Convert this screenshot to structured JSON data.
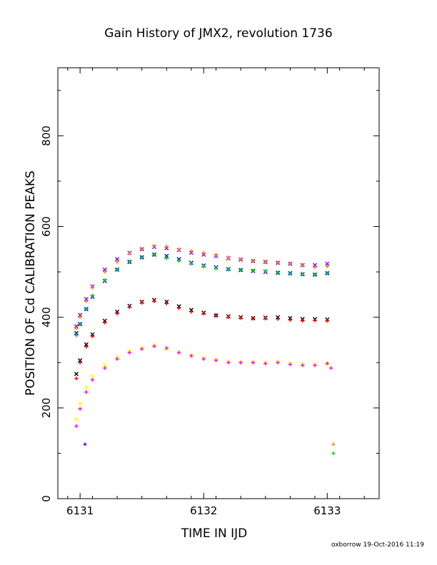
{
  "title": "Gain History of JMX2, revolution 1736",
  "footer": "oxborrow 19-Oct-2016 11:19",
  "chart_data": {
    "type": "scatter",
    "title": "Gain History of JMX2, revolution 1736",
    "xlabel": "TIME IN IJD",
    "ylabel": "POSITION OF Cd CALIBRATION PEAKS",
    "xlim": [
      6130.82,
      6133.42
    ],
    "ylim": [
      0,
      950
    ],
    "xticks": [
      "6131",
      "6132",
      "6133"
    ],
    "yticks": [
      "0",
      "200",
      "400",
      "600",
      "800"
    ],
    "grid": false,
    "legend": "none",
    "series": [
      {
        "color": "#8800ff",
        "marker": "x",
        "x": [
          6130.97,
          6131.0,
          6131.05,
          6131.1,
          6131.2,
          6131.3,
          6131.4,
          6131.5,
          6131.6,
          6131.7,
          6131.8,
          6131.9,
          6132.0,
          6132.1,
          6132.2,
          6132.3,
          6132.4,
          6132.5,
          6132.6,
          6132.7,
          6132.8,
          6132.9,
          6133.0
        ],
        "y": [
          380,
          405,
          440,
          468,
          505,
          528,
          542,
          550,
          555,
          552,
          548,
          542,
          538,
          535,
          530,
          527,
          524,
          522,
          520,
          518,
          515,
          515,
          518
        ]
      },
      {
        "color": "#0000ff",
        "marker": "x",
        "x": [
          6130.97,
          6131.0,
          6131.05,
          6131.1,
          6131.2,
          6131.3,
          6131.4,
          6131.5,
          6131.6,
          6131.7,
          6131.8,
          6131.9,
          6132.0,
          6132.1,
          6132.2,
          6132.3,
          6132.4,
          6132.5,
          6132.6,
          6132.7,
          6132.8,
          6132.9,
          6133.0
        ],
        "y": [
          365,
          385,
          418,
          445,
          480,
          505,
          522,
          532,
          538,
          535,
          528,
          520,
          514,
          510,
          506,
          504,
          502,
          500,
          498,
          497,
          495,
          494,
          497
        ]
      },
      {
        "color": "#ff8800",
        "marker": "+",
        "x": [
          6130.97,
          6131.0,
          6131.05,
          6131.1,
          6131.2,
          6131.3,
          6131.4,
          6131.5,
          6131.6,
          6131.7,
          6131.8,
          6131.9,
          6132.0,
          6132.1,
          6132.2,
          6132.3,
          6132.4,
          6132.5,
          6132.6,
          6132.7,
          6132.8,
          6132.9,
          6133.0,
          6133.05
        ],
        "y": [
          375,
          400,
          435,
          465,
          500,
          522,
          540,
          550,
          558,
          556,
          550,
          546,
          542,
          538,
          532,
          528,
          524,
          522,
          520,
          518,
          514,
          510,
          512,
          120
        ]
      },
      {
        "color": "#00dd00",
        "marker": "+",
        "x": [
          6130.97,
          6131.0,
          6131.05,
          6131.1,
          6131.2,
          6131.3,
          6131.4,
          6131.5,
          6131.6,
          6131.7,
          6131.8,
          6131.9,
          6132.0,
          6132.1,
          6132.2,
          6132.3,
          6132.4,
          6132.5,
          6132.6,
          6132.7,
          6132.8,
          6132.9,
          6133.0,
          6133.05
        ],
        "y": [
          360,
          385,
          418,
          448,
          482,
          505,
          522,
          532,
          538,
          530,
          524,
          518,
          512,
          508,
          505,
          504,
          503,
          502,
          498,
          496,
          494,
          494,
          497,
          100
        ]
      },
      {
        "color": "#000000",
        "marker": "x",
        "x": [
          6130.97,
          6131.0,
          6131.05,
          6131.1,
          6131.2,
          6131.3,
          6131.4,
          6131.5,
          6131.6,
          6131.7,
          6131.8,
          6131.9,
          6132.0,
          6132.1,
          6132.2,
          6132.3,
          6132.4,
          6132.5,
          6132.6,
          6132.7,
          6132.8,
          6132.9,
          6133.0
        ],
        "y": [
          275,
          305,
          340,
          362,
          392,
          412,
          425,
          434,
          438,
          434,
          424,
          416,
          410,
          404,
          402,
          400,
          398,
          399,
          400,
          398,
          396,
          396,
          395
        ]
      },
      {
        "color": "#ff0000",
        "marker": "+",
        "x": [
          6130.97,
          6131.0,
          6131.05,
          6131.1,
          6131.2,
          6131.3,
          6131.4,
          6131.5,
          6131.6,
          6131.7,
          6131.8,
          6131.9,
          6132.0,
          6132.1,
          6132.2,
          6132.3,
          6132.4,
          6132.5,
          6132.6,
          6132.7,
          6132.8,
          6132.9,
          6133.0
        ],
        "y": [
          265,
          300,
          335,
          358,
          388,
          408,
          422,
          432,
          435,
          430,
          420,
          412,
          408,
          404,
          400,
          398,
          397,
          397,
          396,
          394,
          392,
          393,
          392
        ]
      },
      {
        "color": "#ffff00",
        "marker": "x",
        "x": [
          6130.97,
          6131.0,
          6131.05,
          6131.1,
          6131.2,
          6131.3,
          6131.4,
          6131.5,
          6131.6,
          6131.7,
          6131.8,
          6131.9,
          6132.0,
          6132.1,
          6132.2,
          6132.3,
          6132.4,
          6132.5,
          6132.6,
          6132.7,
          6132.8,
          6132.9,
          6133.0
        ],
        "y": [
          175,
          210,
          245,
          270,
          295,
          312,
          325,
          332,
          338,
          330,
          322,
          315,
          310,
          306,
          302,
          300,
          301,
          300,
          302,
          298,
          296,
          296,
          298
        ]
      },
      {
        "color": "#ff00ff",
        "marker": "+",
        "x": [
          6130.97,
          6131.0,
          6131.05,
          6131.1,
          6131.2,
          6131.3,
          6131.4,
          6131.5,
          6131.6,
          6131.7,
          6131.8,
          6131.9,
          6132.0,
          6132.1,
          6132.2,
          6132.3,
          6132.4,
          6132.5,
          6132.6,
          6132.7,
          6132.8,
          6132.9,
          6133.0,
          6133.03
        ],
        "y": [
          160,
          198,
          235,
          262,
          288,
          308,
          322,
          330,
          336,
          332,
          322,
          315,
          308,
          305,
          300,
          300,
          300,
          298,
          300,
          296,
          294,
          294,
          298,
          288
        ]
      },
      {
        "color": "#6600cc",
        "marker": "+",
        "x": [
          6131.04
        ],
        "y": [
          120
        ]
      }
    ]
  }
}
